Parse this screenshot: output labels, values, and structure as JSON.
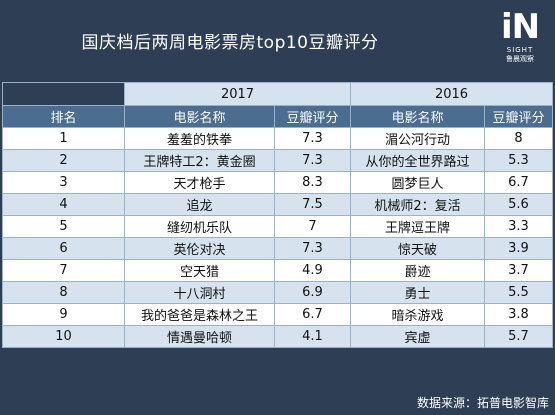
{
  "title": "国庆档后两周电影票房top10豆瓣评分",
  "logo": {
    "mark": "iN",
    "word": "SIGHT",
    "cn": "鲁晨观察"
  },
  "years": {
    "a": "2017",
    "b": "2016"
  },
  "headers": {
    "rank": "排名",
    "movie": "电影名称",
    "score": "豆瓣评分",
    "movie2": "电影名称",
    "score2": "豆瓣评分"
  },
  "rows": [
    {
      "rank": "1",
      "m1": "羞羞的铁拳",
      "s1": "7.3",
      "m2": "湄公河行动",
      "s2": "8"
    },
    {
      "rank": "2",
      "m1": "王牌特工2：黄金圈",
      "s1": "7.3",
      "m2": "从你的全世界路过",
      "s2": "5.3"
    },
    {
      "rank": "3",
      "m1": "天才枪手",
      "s1": "8.3",
      "m2": "圆梦巨人",
      "s2": "6.7"
    },
    {
      "rank": "4",
      "m1": "追龙",
      "s1": "7.5",
      "m2": "机械师2：复活",
      "s2": "5.6"
    },
    {
      "rank": "5",
      "m1": "缝纫机乐队",
      "s1": "7",
      "m2": "王牌逗王牌",
      "s2": "3.3"
    },
    {
      "rank": "6",
      "m1": "英伦对决",
      "s1": "7.3",
      "m2": "惊天破",
      "s2": "3.9"
    },
    {
      "rank": "7",
      "m1": "空天猎",
      "s1": "4.9",
      "m2": "爵迹",
      "s2": "3.7"
    },
    {
      "rank": "8",
      "m1": "十八洞村",
      "s1": "6.9",
      "m2": "勇士",
      "s2": "5.5"
    },
    {
      "rank": "9",
      "m1": "我的爸爸是森林之王",
      "s1": "6.7",
      "m2": "暗杀游戏",
      "s2": "3.8"
    },
    {
      "rank": "10",
      "m1": "情遇曼哈顿",
      "s1": "4.1",
      "m2": "宾虚",
      "s2": "5.7"
    }
  ],
  "footer": "数据来源：拓普电影智库"
}
